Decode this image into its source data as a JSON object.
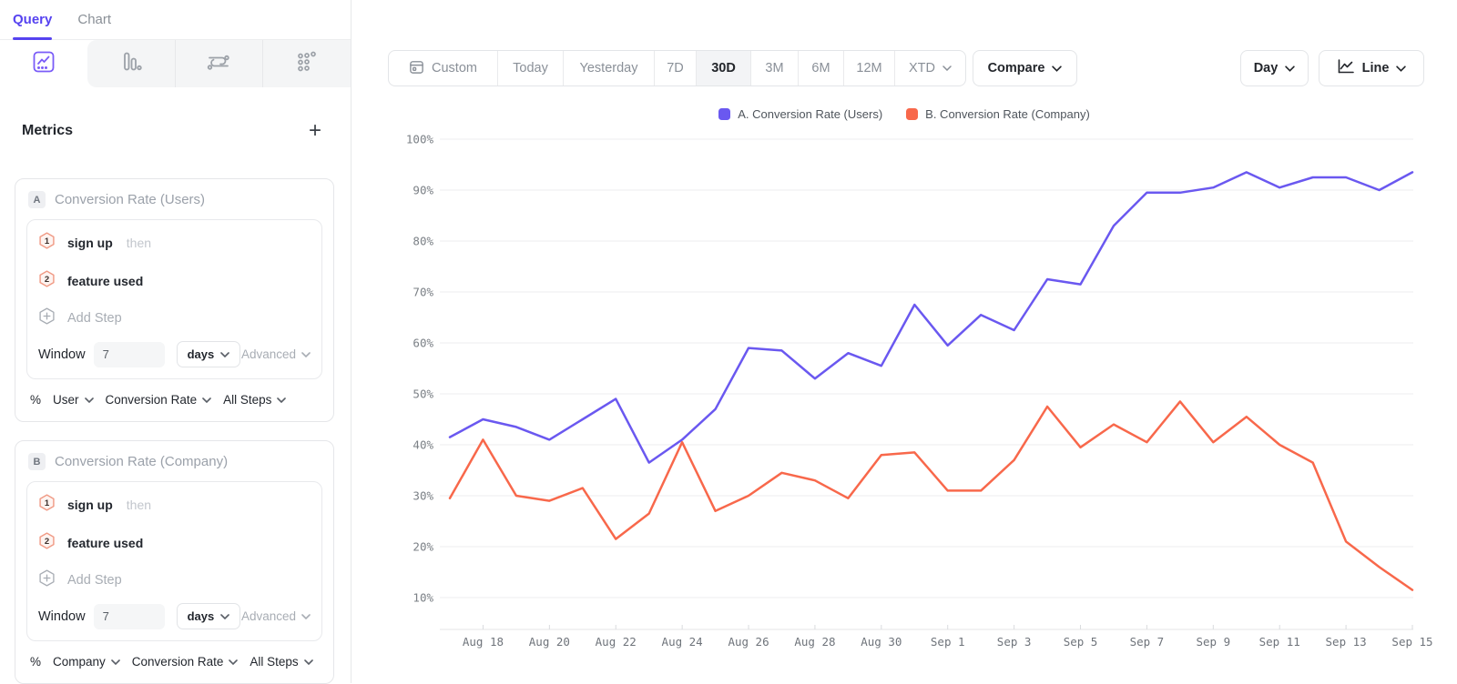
{
  "colors": {
    "brand_purple": "#5643F0",
    "icon_purple": "#7A5CF8",
    "series_a": "#6A58F0",
    "series_b": "#F8684B",
    "selected_segment_bg": "#F3F4F6",
    "step_badge_border": "#F09A85",
    "step_badge_fill": "#FEF4F1"
  },
  "sidebar": {
    "tabs": [
      {
        "label": "Query"
      },
      {
        "label": "Chart"
      }
    ],
    "chart_type_icons": [
      "line-chart",
      "bar-chart",
      "flow",
      "scatter"
    ],
    "metrics_header": {
      "title": "Metrics",
      "add_label": "+"
    },
    "cards": [
      {
        "badge": "A",
        "title": "Conversion Rate (Users)",
        "steps": [
          {
            "number": "1",
            "label": "sign up",
            "suffix": "then"
          },
          {
            "number": "2",
            "label": "feature used",
            "suffix": ""
          }
        ],
        "add_step_label": "Add Step",
        "window": {
          "label": "Window",
          "value": "7",
          "unit": "days",
          "advanced_label": "Advanced"
        },
        "measure": {
          "prefix": "%",
          "entity": "User",
          "metric": "Conversion Rate",
          "scope": "All Steps"
        }
      },
      {
        "badge": "B",
        "title": "Conversion Rate (Company)",
        "steps": [
          {
            "number": "1",
            "label": "sign up",
            "suffix": "then"
          },
          {
            "number": "2",
            "label": "feature used",
            "suffix": ""
          }
        ],
        "add_step_label": "Add Step",
        "window": {
          "label": "Window",
          "value": "7",
          "unit": "days",
          "advanced_label": "Advanced"
        },
        "measure": {
          "prefix": "%",
          "entity": "Company",
          "metric": "Conversion Rate",
          "scope": "All Steps"
        }
      }
    ]
  },
  "toolbar": {
    "date_ranges": [
      {
        "label": "Custom",
        "icon": "calendar",
        "selected": false,
        "dropdown": false
      },
      {
        "label": "Today",
        "selected": false,
        "dropdown": false
      },
      {
        "label": "Yesterday",
        "selected": false,
        "dropdown": false
      },
      {
        "label": "7D",
        "selected": false,
        "dropdown": false
      },
      {
        "label": "30D",
        "selected": true,
        "dropdown": false
      },
      {
        "label": "3M",
        "selected": false,
        "dropdown": false
      },
      {
        "label": "6M",
        "selected": false,
        "dropdown": false
      },
      {
        "label": "12M",
        "selected": false,
        "dropdown": false
      },
      {
        "label": "XTD",
        "selected": false,
        "dropdown": true
      }
    ],
    "compare_label": "Compare",
    "granularity_label": "Day",
    "chart_style_label": "Line"
  },
  "chart_data": {
    "type": "line",
    "x": [
      "Aug 17",
      "Aug 18",
      "Aug 19",
      "Aug 20",
      "Aug 21",
      "Aug 22",
      "Aug 23",
      "Aug 24",
      "Aug 25",
      "Aug 26",
      "Aug 27",
      "Aug 28",
      "Aug 29",
      "Aug 30",
      "Aug 31",
      "Sep 1",
      "Sep 2",
      "Sep 3",
      "Sep 4",
      "Sep 5",
      "Sep 6",
      "Sep 7",
      "Sep 8",
      "Sep 9",
      "Sep 10",
      "Sep 11",
      "Sep 12",
      "Sep 13",
      "Sep 14",
      "Sep 15"
    ],
    "x_tick_start": 1,
    "x_tick_every": 2,
    "series": [
      {
        "name": "A. Conversion Rate (Users)",
        "color": "#6A58F0",
        "values": [
          41.5,
          45,
          43.5,
          41,
          45,
          49,
          36.5,
          41,
          47,
          59,
          58.5,
          53,
          58,
          55.5,
          67.5,
          59.5,
          65.5,
          62.5,
          72.5,
          71.5,
          83,
          89.5,
          89.5,
          90.5,
          93.5,
          90.5,
          92.5,
          92.5,
          90,
          93.5
        ]
      },
      {
        "name": "B. Conversion Rate (Company)",
        "color": "#F8684B",
        "values": [
          29.5,
          41,
          30,
          29,
          31.5,
          21.5,
          26.5,
          40.5,
          27,
          30,
          34.5,
          33,
          29.5,
          38,
          38.5,
          31,
          31,
          37,
          47.5,
          39.5,
          44,
          40.5,
          48.5,
          40.5,
          45.5,
          40,
          36.5,
          21,
          16,
          11.5
        ]
      }
    ],
    "y_tick_labels": [
      "100%",
      "90%",
      "80%",
      "70%",
      "60%",
      "50%",
      "40%",
      "30%",
      "20%",
      "10%"
    ],
    "ylim": [
      10,
      100
    ],
    "y_unit": "%",
    "grid": "horizontal",
    "legend_position": "top-center",
    "title": ""
  }
}
